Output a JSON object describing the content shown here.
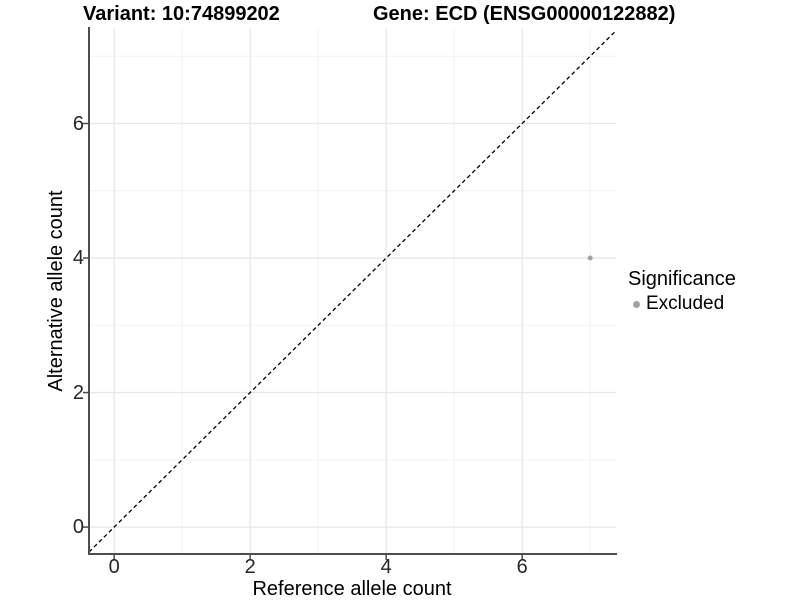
{
  "chart_data": {
    "type": "scatter",
    "titles": [
      "Variant: 10:74899202",
      "Gene: ECD (ENSG00000122882)"
    ],
    "xlabel": "Reference allele count",
    "ylabel": "Alternative allele count",
    "xlim": [
      -0.37,
      7.38
    ],
    "ylim": [
      -0.4,
      7.42
    ],
    "x_ticks": {
      "major": [
        0,
        2,
        4,
        6
      ],
      "minor": [
        1,
        3,
        5,
        7
      ]
    },
    "y_ticks": {
      "major": [
        0,
        2,
        4,
        6
      ],
      "minor": [
        1,
        3,
        5,
        7
      ]
    },
    "grid": true,
    "identity_line": {
      "type": "abline",
      "slope": 1,
      "intercept": 0,
      "style": "dashed",
      "color": "#000000"
    },
    "series": [
      {
        "name": "Excluded",
        "color": "#a3a3a3",
        "marker": "circle",
        "marker_radius": 2.5,
        "points": [
          [
            7,
            4
          ]
        ]
      }
    ],
    "legend": {
      "title": "Significance",
      "position": "right",
      "items": [
        {
          "label": "Excluded",
          "color": "#a3a3a3",
          "marker": "circle"
        }
      ]
    },
    "style": {
      "grid_major_color": "#e7e7e7",
      "grid_minor_color": "#f2f2f2",
      "axis_line_color": "#4d4d4d",
      "tick_color": "#4d4d4d",
      "background": "#ffffff"
    }
  }
}
